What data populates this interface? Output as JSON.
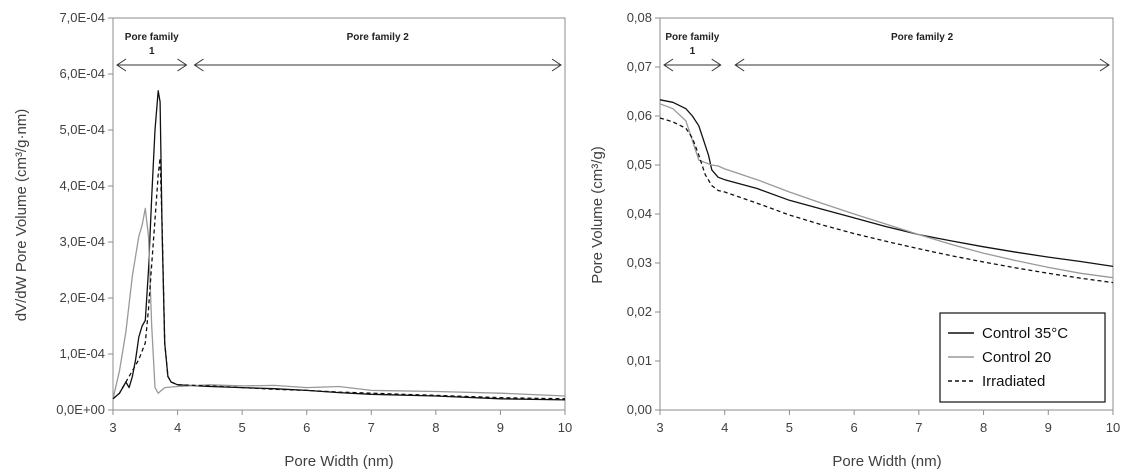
{
  "chart_data": [
    {
      "type": "line",
      "xlabel": "Pore Width (nm)",
      "ylabel": "dV/dW Pore Volume (cm³/g·nm)",
      "xlim": [
        3,
        10
      ],
      "ylim": [
        0,
        0.0007
      ],
      "x_ticks": [
        "3",
        "4",
        "5",
        "6",
        "7",
        "8",
        "9",
        "10"
      ],
      "y_ticks": [
        "0,0E+00",
        "1,0E-04",
        "2,0E-04",
        "3,0E-04",
        "4,0E-04",
        "5,0E-04",
        "6,0E-04",
        "7,0E-04"
      ],
      "annotations": [
        {
          "line1": "Pore family",
          "line2": "1",
          "x_from": 3,
          "x_to": 4.2
        },
        {
          "line1": "Pore family 2",
          "line2": "",
          "x_from": 4.2,
          "x_to": 10
        }
      ],
      "series": [
        {
          "color": "#111111",
          "dash": "solid",
          "x": [
            3.0,
            3.1,
            3.2,
            3.25,
            3.3,
            3.35,
            3.4,
            3.45,
            3.5,
            3.55,
            3.6,
            3.65,
            3.7,
            3.73,
            3.76,
            3.8,
            3.85,
            3.9,
            4.0,
            4.5,
            5.0,
            5.5,
            6.0,
            6.5,
            7.0,
            8.0,
            9.0,
            10.0
          ],
          "y": [
            2e-05,
            3e-05,
            5e-05,
            4e-05,
            6e-05,
            9e-05,
            0.00013,
            0.00015,
            0.00016,
            0.00025,
            0.00038,
            0.0005,
            0.00057,
            0.00055,
            0.00032,
            0.00012,
            6e-05,
            5e-05,
            4.5e-05,
            4.2e-05,
            4e-05,
            3.8e-05,
            3.5e-05,
            3.1e-05,
            2.8e-05,
            2.5e-05,
            2e-05,
            1.8e-05
          ]
        },
        {
          "color": "#999999",
          "dash": "solid",
          "x": [
            3.0,
            3.1,
            3.2,
            3.3,
            3.4,
            3.45,
            3.5,
            3.55,
            3.6,
            3.65,
            3.7,
            3.75,
            3.8,
            4.0,
            4.5,
            5.0,
            5.5,
            6.0,
            6.5,
            7.0,
            8.0,
            9.0,
            10.0
          ],
          "y": [
            2e-05,
            7e-05,
            0.00014,
            0.00024,
            0.00031,
            0.00033,
            0.00036,
            0.00031,
            0.00015,
            4e-05,
            3e-05,
            3.5e-05,
            4e-05,
            4.2e-05,
            4.5e-05,
            4.3e-05,
            4.4e-05,
            4e-05,
            4.2e-05,
            3.5e-05,
            3.3e-05,
            3e-05,
            2.5e-05
          ]
        },
        {
          "color": "#111111",
          "dash": "dashed",
          "x": [
            3.0,
            3.1,
            3.2,
            3.3,
            3.4,
            3.5,
            3.55,
            3.6,
            3.65,
            3.7,
            3.73,
            3.76,
            3.8,
            3.85,
            3.9,
            4.0,
            4.5,
            5.0,
            5.5,
            6.0,
            6.5,
            7.0,
            8.0,
            9.0,
            10.0
          ],
          "y": [
            2e-05,
            3e-05,
            5e-05,
            7e-05,
            9e-05,
            0.00012,
            0.00018,
            0.00026,
            0.00034,
            0.00042,
            0.00045,
            0.00033,
            0.00012,
            6e-05,
            5e-05,
            4.5e-05,
            4.3e-05,
            4e-05,
            3.7e-05,
            3.5e-05,
            3.2e-05,
            3e-05,
            2.6e-05,
            2.2e-05,
            2e-05
          ]
        }
      ]
    },
    {
      "type": "line",
      "xlabel": "Pore Width (nm)",
      "ylabel": "Pore Volume (cm³/g)",
      "xlim": [
        3,
        10
      ],
      "ylim": [
        0,
        0.08
      ],
      "x_ticks": [
        "3",
        "4",
        "5",
        "6",
        "7",
        "8",
        "9",
        "10"
      ],
      "y_ticks": [
        "0,00",
        "0,01",
        "0,02",
        "0,03",
        "0,04",
        "0,05",
        "0,06",
        "0,07",
        "0,08"
      ],
      "annotations": [
        {
          "line1": "Pore family",
          "line2": "1",
          "x_from": 3,
          "x_to": 4
        },
        {
          "line1": "Pore family 2",
          "line2": "",
          "x_from": 4.1,
          "x_to": 10
        }
      ],
      "legend": {
        "position": "bottom-right"
      },
      "series": [
        {
          "name": "Control 35°C",
          "color": "#111111",
          "dash": "solid",
          "x": [
            3.0,
            3.2,
            3.4,
            3.5,
            3.6,
            3.7,
            3.75,
            3.8,
            3.9,
            4.0,
            4.5,
            5.0,
            5.5,
            6.0,
            6.5,
            7.0,
            7.5,
            8.0,
            8.5,
            9.0,
            9.5,
            10.0
          ],
          "y": [
            0.0633,
            0.0628,
            0.0615,
            0.06,
            0.058,
            0.054,
            0.052,
            0.049,
            0.0475,
            0.047,
            0.0452,
            0.0428,
            0.041,
            0.0392,
            0.0374,
            0.0358,
            0.0345,
            0.0333,
            0.0322,
            0.0312,
            0.0303,
            0.0293
          ]
        },
        {
          "name": "Control 20",
          "color": "#999999",
          "dash": "solid",
          "x": [
            3.0,
            3.2,
            3.4,
            3.5,
            3.6,
            3.7,
            3.8,
            3.9,
            4.0,
            4.5,
            5.0,
            5.5,
            6.0,
            6.5,
            7.0,
            7.5,
            8.0,
            8.5,
            9.0,
            9.5,
            10.0
          ],
          "y": [
            0.0625,
            0.0615,
            0.059,
            0.055,
            0.051,
            0.0505,
            0.05,
            0.0498,
            0.0492,
            0.047,
            0.0445,
            0.0422,
            0.04,
            0.0379,
            0.0358,
            0.0338,
            0.032,
            0.0305,
            0.0291,
            0.0279,
            0.027
          ]
        },
        {
          "name": "Irradiated",
          "color": "#111111",
          "dash": "dashed",
          "x": [
            3.0,
            3.2,
            3.4,
            3.5,
            3.6,
            3.7,
            3.8,
            3.9,
            4.0,
            4.5,
            5.0,
            5.5,
            6.0,
            6.5,
            7.0,
            7.5,
            8.0,
            8.5,
            9.0,
            9.5,
            10.0
          ],
          "y": [
            0.0596,
            0.0588,
            0.0575,
            0.0555,
            0.052,
            0.048,
            0.0458,
            0.0448,
            0.0445,
            0.0422,
            0.0398,
            0.0378,
            0.036,
            0.0344,
            0.0329,
            0.0315,
            0.0302,
            0.029,
            0.0279,
            0.0269,
            0.026
          ]
        }
      ]
    }
  ]
}
